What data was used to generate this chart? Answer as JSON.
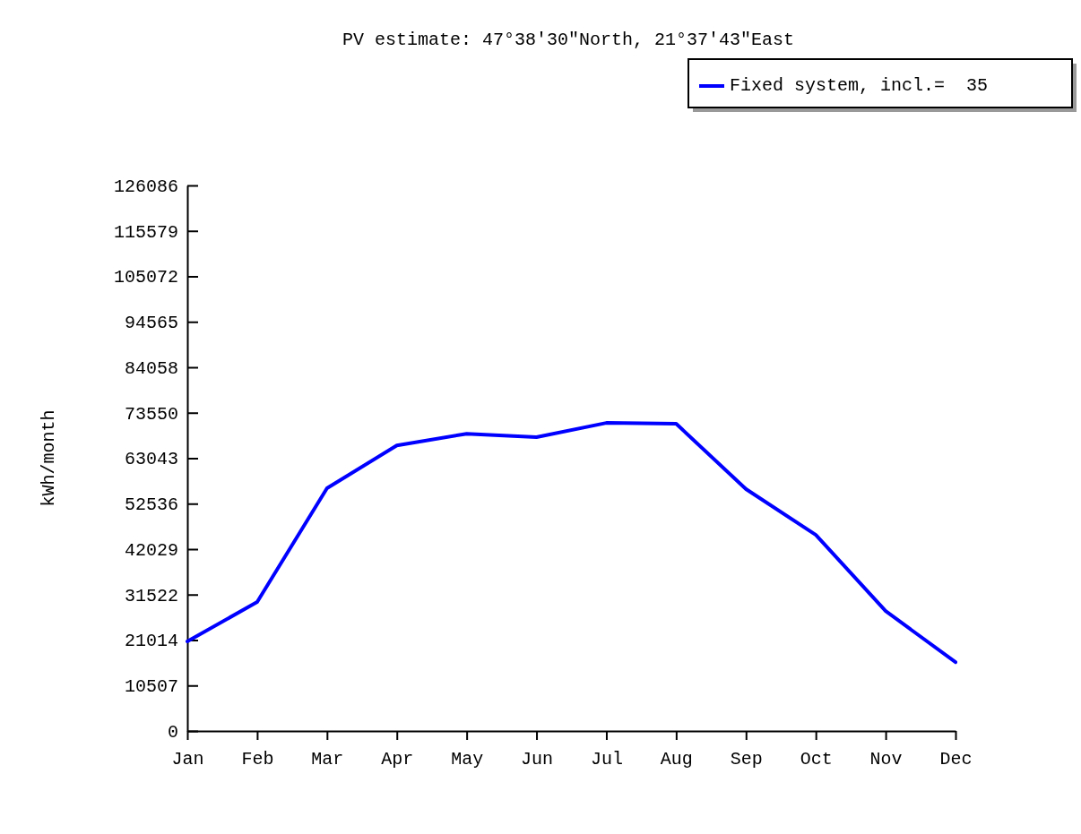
{
  "chart_data": {
    "type": "line",
    "title": "PV estimate:  47°38′30\"North, 21°37′43\"East",
    "ylabel": "kWh/month",
    "categories": [
      "Jan",
      "Feb",
      "Mar",
      "Apr",
      "May",
      "Jun",
      "Jul",
      "Aug",
      "Sep",
      "Oct",
      "Nov",
      "Dec"
    ],
    "series": [
      {
        "name": "Fixed system, incl.=  35",
        "color": "#0000ff",
        "values": [
          20700,
          29800,
          56100,
          66000,
          68700,
          67900,
          71200,
          71000,
          55900,
          45300,
          27700,
          15900
        ]
      }
    ],
    "ylim": [
      0,
      126086
    ],
    "yticks": [
      0,
      10507,
      21014,
      31522,
      42029,
      52536,
      63043,
      73550,
      84058,
      94565,
      105072,
      115579,
      126086
    ],
    "grid": false,
    "legend": "top right",
    "marker": "none",
    "line_style": "solid"
  }
}
